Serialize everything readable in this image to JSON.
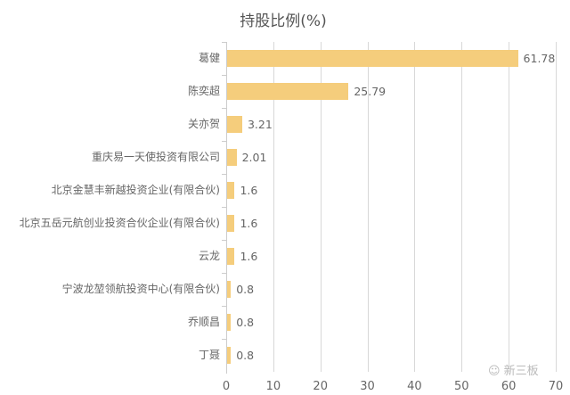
{
  "chart_data": {
    "type": "bar",
    "orientation": "horizontal",
    "title": "持股比例(%)",
    "xlabel": "",
    "ylabel": "",
    "xlim": [
      0,
      70
    ],
    "xticks": [
      "0",
      "10",
      "20",
      "30",
      "40",
      "50",
      "60",
      "70"
    ],
    "grid": true,
    "bar_color": "#f5cd7c",
    "categories": [
      "葛健",
      "陈奕超",
      "关亦贺",
      "重庆易一天使投资有限公司",
      "北京金慧丰新越投资企业(有限合伙)",
      "北京五岳元航创业投资合伙企业(有限合伙)",
      "云龙",
      "宁波龙堃领航投资中心(有限合伙)",
      "乔顺昌",
      "丁聂"
    ],
    "values": [
      61.78,
      25.79,
      3.21,
      2.01,
      1.6,
      1.6,
      1.6,
      0.8,
      0.8,
      0.8
    ],
    "value_labels": [
      "61.78",
      "25.79",
      "3.21",
      "2.01",
      "1.6",
      "1.6",
      "1.6",
      "0.8",
      "0.8",
      "0.8"
    ]
  },
  "watermark": "☺ 新三板"
}
